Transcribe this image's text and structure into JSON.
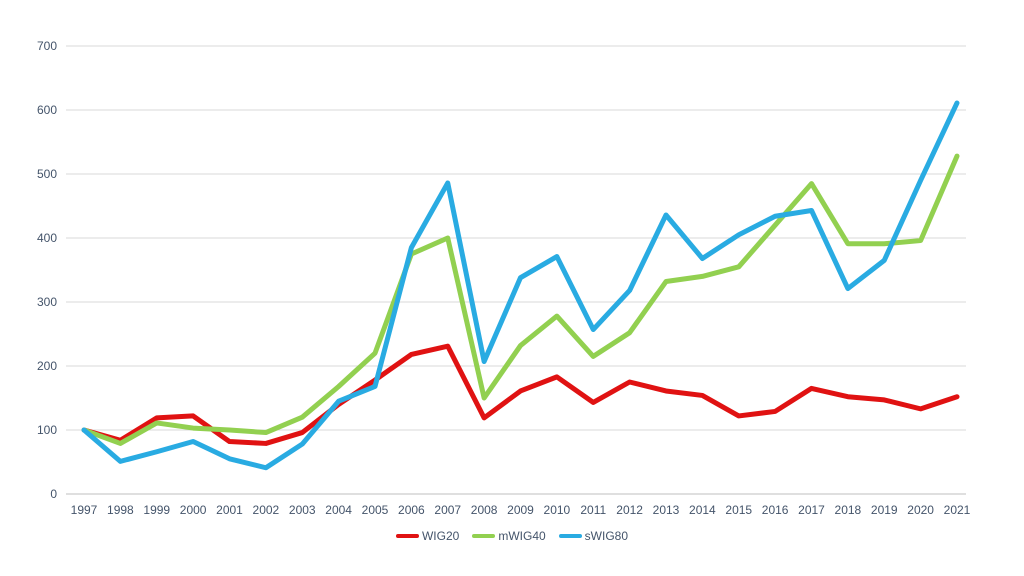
{
  "chart_data": {
    "type": "line",
    "title": "",
    "xlabel": "",
    "ylabel": "",
    "ylim": [
      0,
      700
    ],
    "grid": true,
    "legend_position": "bottom-center",
    "yticks": [
      "0",
      "100",
      "200",
      "300",
      "400",
      "500",
      "600",
      "700"
    ],
    "x": [
      "1997",
      "1998",
      "1999",
      "2000",
      "2001",
      "2002",
      "2003",
      "2004",
      "2005",
      "2006",
      "2007",
      "2008",
      "2009",
      "2010",
      "2011",
      "2012",
      "2013",
      "2014",
      "2015",
      "2016",
      "2017",
      "2018",
      "2019",
      "2020",
      "2021"
    ],
    "series": [
      {
        "name": "WIG20",
        "color": "#e01212",
        "values": [
          100,
          84,
          119,
          122,
          82,
          79,
          96,
          140,
          178,
          218,
          231,
          119,
          161,
          183,
          143,
          175,
          161,
          154,
          122,
          129,
          165,
          152,
          147,
          133,
          152
        ]
      },
      {
        "name": "mWIG40",
        "color": "#92d050",
        "values": [
          100,
          79,
          111,
          103,
          100,
          96,
          120,
          168,
          220,
          375,
          400,
          150,
          232,
          278,
          215,
          252,
          332,
          340,
          355,
          420,
          485,
          391,
          391,
          396,
          528
        ]
      },
      {
        "name": "sWIG80",
        "color": "#29abe2",
        "values": [
          100,
          51,
          66,
          82,
          55,
          41,
          78,
          145,
          168,
          385,
          486,
          207,
          338,
          371,
          257,
          318,
          436,
          368,
          405,
          434,
          443,
          321,
          365,
          490,
          611
        ]
      }
    ]
  },
  "colors": {
    "gridline": "#d9d9d9",
    "axis_line": "#bfbfbf",
    "tick_label": "#44546a",
    "background": "#ffffff"
  }
}
